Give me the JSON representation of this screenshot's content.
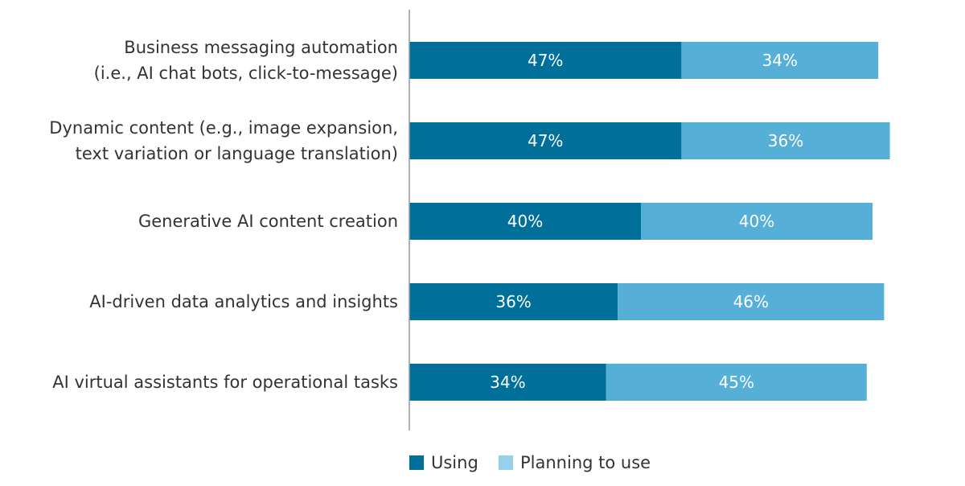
{
  "chart_data": {
    "type": "bar",
    "orientation": "horizontal",
    "stacked": true,
    "categories": [
      [
        "Business messaging automation",
        "(i.e., AI chat bots, click-to-message)"
      ],
      [
        "Dynamic content (e.g., image expansion,",
        "text variation or language translation)"
      ],
      [
        "Generative AI content creation"
      ],
      [
        "AI-driven data analytics and insights"
      ],
      [
        "AI virtual assistants for operational tasks"
      ]
    ],
    "series": [
      {
        "name": "Using",
        "values": [
          47,
          47,
          40,
          36,
          34
        ],
        "color": "#00709b"
      },
      {
        "name": "Planning to use",
        "values": [
          34,
          36,
          40,
          46,
          45
        ],
        "color": "#56afd6"
      }
    ],
    "data_labels": [
      [
        "47%",
        "34%"
      ],
      [
        "47%",
        "36%"
      ],
      [
        "40%",
        "40%"
      ],
      [
        "36%",
        "46%"
      ],
      [
        "34%",
        "45%"
      ]
    ],
    "xlim": [
      0,
      100
    ],
    "grid": false,
    "legend_position": "bottom",
    "legend_colors": {
      "Using": "#00709b",
      "Planning to use": "#95d1ea"
    },
    "axis_color": "#999999"
  }
}
